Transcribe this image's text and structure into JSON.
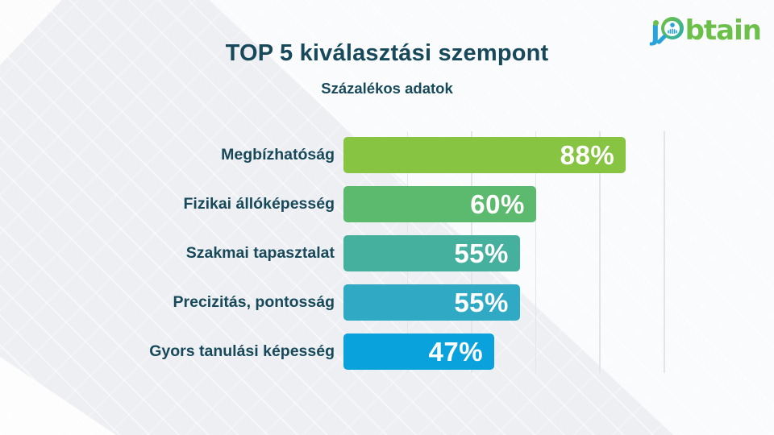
{
  "header": {
    "title": "TOP 5 kiválasztási szempont",
    "subtitle": "Százalékos adatok"
  },
  "logo": {
    "j": "ȷ",
    "rest": "btain"
  },
  "icons": {
    "logo_magnifier": "magnifier-icon",
    "logo_person": "person-icon"
  },
  "colors": {
    "title_text": "#17495a",
    "label_text": "#17495a",
    "value_text": "#ffffff",
    "grid_line": "#e2e6e9",
    "background": "#edeff2",
    "logo_blue": "#2aa3db",
    "logo_green": "#6cc04a",
    "logo_teal": "#2fb0a5"
  },
  "chart_data": {
    "type": "bar",
    "orientation": "horizontal",
    "title": "TOP 5 kiválasztási szempont",
    "subtitle": "Százalékos adatok",
    "categories": [
      "Megbízhatóság",
      "Fizikai állóképesség",
      "Szakmai tapasztalat",
      "Precizitás, pontosság",
      "Gyors tanulási képesség"
    ],
    "values": [
      88,
      60,
      55,
      55,
      47
    ],
    "value_labels": [
      "88%",
      "60%",
      "55%",
      "55%",
      "47%"
    ],
    "bar_colors": [
      "#86c441",
      "#5cba6e",
      "#45b09e",
      "#2fa9c4",
      "#0aa2dc"
    ],
    "xlim": [
      0,
      100
    ],
    "gridlines_percent": [
      20,
      40,
      60,
      80,
      100
    ],
    "grid": true,
    "legend": false
  }
}
